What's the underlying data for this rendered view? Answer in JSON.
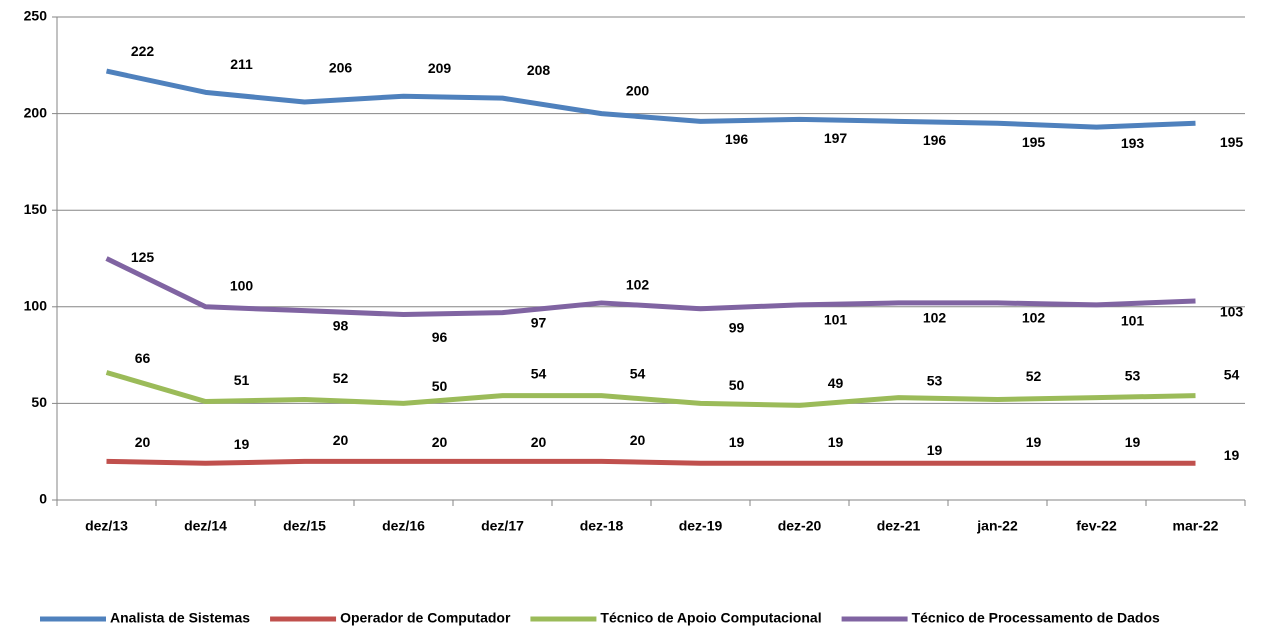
{
  "chart_data": {
    "type": "line",
    "categories": [
      "dez/13",
      "dez/14",
      "dez/15",
      "dez/16",
      "dez/17",
      "dez-18",
      "dez-19",
      "dez-20",
      "dez-21",
      "jan-22",
      "fev-22",
      "mar-22"
    ],
    "series": [
      {
        "name": "Analista de Sistemas",
        "color": "#4f81bd",
        "values": [
          222,
          211,
          206,
          209,
          208,
          200,
          196,
          197,
          196,
          195,
          193,
          195
        ]
      },
      {
        "name": "Operador de Computador",
        "color": "#c0504d",
        "values": [
          20,
          19,
          20,
          20,
          20,
          20,
          19,
          19,
          19,
          19,
          19,
          19
        ]
      },
      {
        "name": "Técnico de Apoio Computacional",
        "color": "#9bbb59",
        "values": [
          66,
          51,
          52,
          50,
          54,
          54,
          50,
          49,
          53,
          52,
          53,
          54
        ]
      },
      {
        "name": "Técnico de Processamento de Dados",
        "color": "#8064a2",
        "values": [
          125,
          100,
          98,
          96,
          97,
          102,
          99,
          101,
          102,
          102,
          101,
          103
        ]
      }
    ],
    "ylim": [
      0,
      250
    ],
    "yticks": [
      0,
      50,
      100,
      150,
      200,
      250
    ],
    "grid": true,
    "legend": "bottom"
  }
}
